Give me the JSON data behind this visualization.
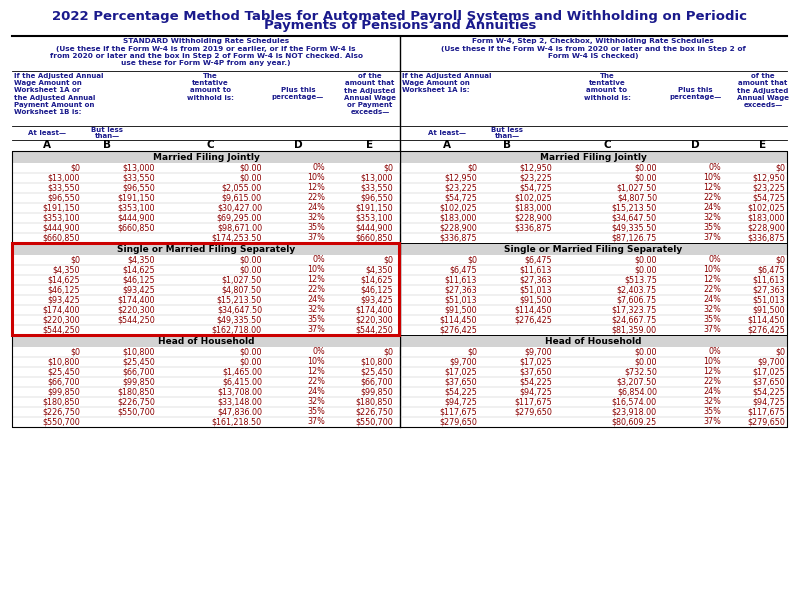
{
  "title_line1": "2022 Percentage Method Tables for Automated Payroll Systems and Withholding on Periodic",
  "title_line2": "Payments of Pensions and Annuities",
  "title_color": "#1a1a8c",
  "data_color": "#8b0000",
  "header_bg": "#d3d3d3",
  "highlight_color": "#cc0000",
  "left_tables": {
    "Married Filing Jointly": [
      [
        "$0",
        "$13,000",
        "$0.00",
        "0%",
        "$0"
      ],
      [
        "$13,000",
        "$33,550",
        "$0.00",
        "10%",
        "$13,000"
      ],
      [
        "$33,550",
        "$96,550",
        "$2,055.00",
        "12%",
        "$33,550"
      ],
      [
        "$96,550",
        "$191,150",
        "$9,615.00",
        "22%",
        "$96,550"
      ],
      [
        "$191,150",
        "$353,100",
        "$30,427.00",
        "24%",
        "$191,150"
      ],
      [
        "$353,100",
        "$444,900",
        "$69,295.00",
        "32%",
        "$353,100"
      ],
      [
        "$444,900",
        "$660,850",
        "$98,671.00",
        "35%",
        "$444,900"
      ],
      [
        "$660,850",
        "",
        "$174,253.50",
        "37%",
        "$660,850"
      ]
    ],
    "Single or Married Filing Separately": [
      [
        "$0",
        "$4,350",
        "$0.00",
        "0%",
        "$0"
      ],
      [
        "$4,350",
        "$14,625",
        "$0.00",
        "10%",
        "$4,350"
      ],
      [
        "$14,625",
        "$46,125",
        "$1,027.50",
        "12%",
        "$14,625"
      ],
      [
        "$46,125",
        "$93,425",
        "$4,807.50",
        "22%",
        "$46,125"
      ],
      [
        "$93,425",
        "$174,400",
        "$15,213.50",
        "24%",
        "$93,425"
      ],
      [
        "$174,400",
        "$220,300",
        "$34,647.50",
        "32%",
        "$174,400"
      ],
      [
        "$220,300",
        "$544,250",
        "$49,335.50",
        "35%",
        "$220,300"
      ],
      [
        "$544,250",
        "",
        "$162,718.00",
        "37%",
        "$544,250"
      ]
    ],
    "Head of Household": [
      [
        "$0",
        "$10,800",
        "$0.00",
        "0%",
        "$0"
      ],
      [
        "$10,800",
        "$25,450",
        "$0.00",
        "10%",
        "$10,800"
      ],
      [
        "$25,450",
        "$66,700",
        "$1,465.00",
        "12%",
        "$25,450"
      ],
      [
        "$66,700",
        "$99,850",
        "$6,415.00",
        "22%",
        "$66,700"
      ],
      [
        "$99,850",
        "$180,850",
        "$13,708.00",
        "24%",
        "$99,850"
      ],
      [
        "$180,850",
        "$226,750",
        "$33,148.00",
        "32%",
        "$180,850"
      ],
      [
        "$226,750",
        "$550,700",
        "$47,836.00",
        "35%",
        "$226,750"
      ],
      [
        "$550,700",
        "",
        "$161,218.50",
        "37%",
        "$550,700"
      ]
    ]
  },
  "right_tables": {
    "Married Filing Jointly": [
      [
        "$0",
        "$12,950",
        "$0.00",
        "0%",
        "$0"
      ],
      [
        "$12,950",
        "$23,225",
        "$0.00",
        "10%",
        "$12,950"
      ],
      [
        "$23,225",
        "$54,725",
        "$1,027.50",
        "12%",
        "$23,225"
      ],
      [
        "$54,725",
        "$102,025",
        "$4,807.50",
        "22%",
        "$54,725"
      ],
      [
        "$102,025",
        "$183,000",
        "$15,213.50",
        "24%",
        "$102,025"
      ],
      [
        "$183,000",
        "$228,900",
        "$34,647.50",
        "32%",
        "$183,000"
      ],
      [
        "$228,900",
        "$336,875",
        "$49,335.50",
        "35%",
        "$228,900"
      ],
      [
        "$336,875",
        "",
        "$87,126.75",
        "37%",
        "$336,875"
      ]
    ],
    "Single or Married Filing Separately": [
      [
        "$0",
        "$6,475",
        "$0.00",
        "0%",
        "$0"
      ],
      [
        "$6,475",
        "$11,613",
        "$0.00",
        "10%",
        "$6,475"
      ],
      [
        "$11,613",
        "$27,363",
        "$513.75",
        "12%",
        "$11,613"
      ],
      [
        "$27,363",
        "$51,013",
        "$2,403.75",
        "22%",
        "$27,363"
      ],
      [
        "$51,013",
        "$91,500",
        "$7,606.75",
        "24%",
        "$51,013"
      ],
      [
        "$91,500",
        "$114,450",
        "$17,323.75",
        "32%",
        "$91,500"
      ],
      [
        "$114,450",
        "$276,425",
        "$24,667.75",
        "35%",
        "$114,450"
      ],
      [
        "$276,425",
        "",
        "$81,359.00",
        "37%",
        "$276,425"
      ]
    ],
    "Head of Household": [
      [
        "$0",
        "$9,700",
        "$0.00",
        "0%",
        "$0"
      ],
      [
        "$9,700",
        "$17,025",
        "$0.00",
        "10%",
        "$9,700"
      ],
      [
        "$17,025",
        "$37,650",
        "$732.50",
        "12%",
        "$17,025"
      ],
      [
        "$37,650",
        "$54,225",
        "$3,207.50",
        "22%",
        "$37,650"
      ],
      [
        "$54,225",
        "$94,725",
        "$6,854.00",
        "24%",
        "$54,225"
      ],
      [
        "$94,725",
        "$117,675",
        "$16,574.00",
        "32%",
        "$94,725"
      ],
      [
        "$117,675",
        "$279,650",
        "$23,918.00",
        "35%",
        "$117,675"
      ],
      [
        "$279,650",
        "",
        "$80,609.25",
        "37%",
        "$279,650"
      ]
    ]
  },
  "filing_statuses": [
    "Married Filing Jointly",
    "Single or Married Filing Separately",
    "Head of Household"
  ],
  "highlight_status": "Single or Married Filing Separately"
}
